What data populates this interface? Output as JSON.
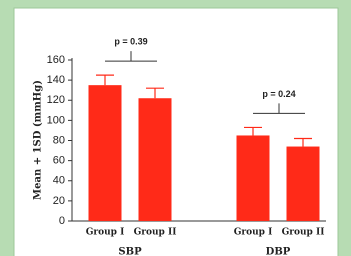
{
  "chart_data": {
    "type": "bar",
    "y_label": "Mean + 1SD (mmHg)",
    "categories": [
      "SBP",
      "DBP"
    ],
    "series": [
      {
        "name": "Group I",
        "color": "#ff2a18",
        "values": [
          135,
          85
        ],
        "errors": [
          10,
          8
        ]
      },
      {
        "name": "Group II",
        "color": "#ff2a18",
        "values": [
          122,
          74
        ],
        "errors": [
          10,
          8
        ]
      }
    ],
    "annotations": [
      {
        "text": "p = 0.39"
      },
      {
        "text": "p = 0.24"
      }
    ],
    "ylim": [
      0,
      160
    ],
    "yticks": [
      0,
      20,
      40,
      60,
      80,
      100,
      120,
      140,
      160
    ]
  }
}
